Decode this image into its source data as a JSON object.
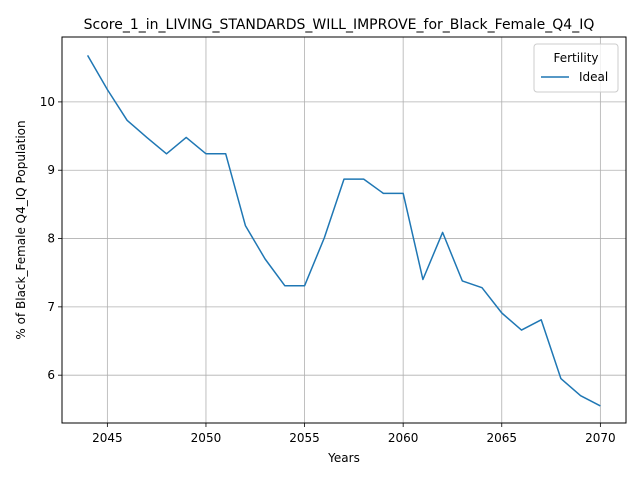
{
  "chart_data": {
    "type": "line",
    "title": "Score_1_in_LIVING_STANDARDS_WILL_IMPROVE_for_Black_Female_Q4_IQ",
    "xlabel": "Years",
    "ylabel": "% of Black_Female Q4_IQ Population",
    "xlim": [
      2042.7,
      2071.3
    ],
    "ylim": [
      5.3,
      10.95
    ],
    "x_ticks": [
      2045,
      2050,
      2055,
      2060,
      2065,
      2070
    ],
    "y_ticks": [
      6,
      7,
      8,
      9,
      10
    ],
    "grid": true,
    "legend": {
      "title": "Fertility",
      "placement": "top-right"
    },
    "series": [
      {
        "name": "Ideal",
        "color": "#1f77b4",
        "x": [
          2044,
          2045,
          2046,
          2047,
          2048,
          2049,
          2050,
          2051,
          2052,
          2053,
          2054,
          2055,
          2056,
          2057,
          2058,
          2059,
          2060,
          2061,
          2062,
          2063,
          2064,
          2065,
          2066,
          2067,
          2068,
          2069,
          2070
        ],
        "y": [
          10.68,
          10.18,
          9.73,
          9.48,
          9.24,
          9.48,
          9.24,
          9.24,
          8.19,
          7.7,
          7.31,
          7.31,
          8.01,
          8.87,
          8.87,
          8.66,
          8.66,
          7.4,
          8.09,
          7.38,
          7.28,
          6.91,
          6.66,
          6.81,
          5.95,
          5.7,
          5.55
        ]
      }
    ]
  }
}
